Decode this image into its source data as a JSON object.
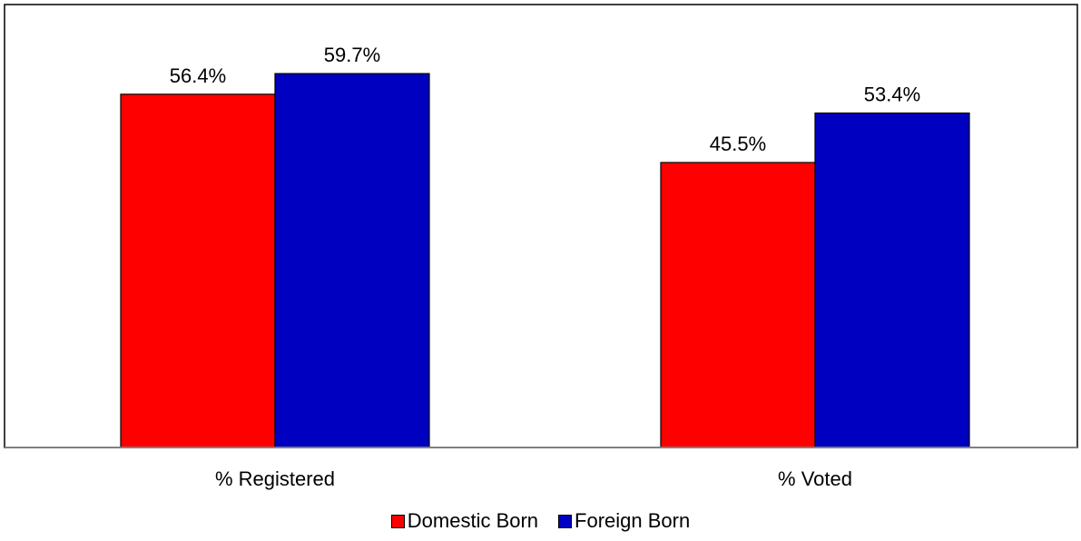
{
  "chart_data": {
    "type": "bar",
    "title": "",
    "xlabel": "",
    "ylabel": "",
    "categories": [
      "% Registered",
      "% Voted"
    ],
    "series": [
      {
        "name": "Domestic Born",
        "values": [
          56.4,
          45.5
        ],
        "labels": [
          "56.4%",
          "45.5%"
        ],
        "color": "#ff0000"
      },
      {
        "name": "Foreign Born",
        "values": [
          59.7,
          53.4
        ],
        "labels": [
          "59.7%",
          "53.4%"
        ],
        "color": "#0000c0"
      }
    ],
    "ylim": [
      0,
      70
    ],
    "grid": false,
    "legend_position": "bottom"
  }
}
